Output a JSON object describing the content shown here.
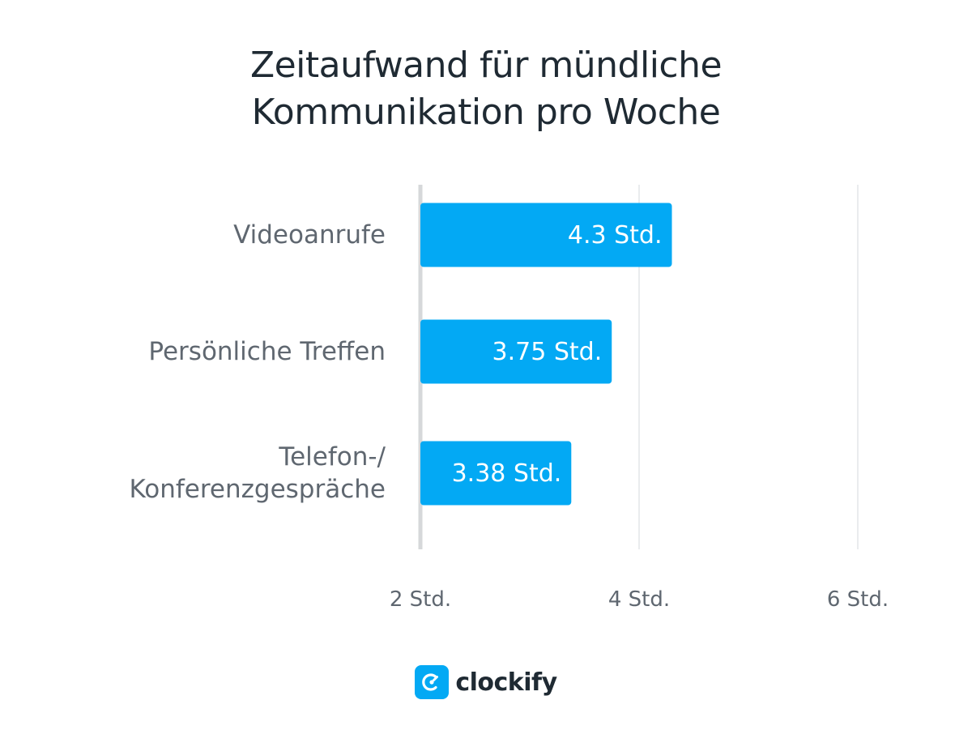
{
  "chart_data": {
    "type": "bar",
    "orientation": "horizontal",
    "title_lines": [
      "Zeitaufwand für mündliche",
      "Kommunikation pro Woche"
    ],
    "categories": [
      [
        "Videoanrufe"
      ],
      [
        "Persönliche Treffen"
      ],
      [
        "Telefon-/",
        "Konferenzgespräche"
      ]
    ],
    "values": [
      4.3,
      3.75,
      3.38
    ],
    "data_labels": [
      "4.3 Std.",
      "3.75 Std.",
      "3.38 Std."
    ],
    "xlim": [
      2,
      6.2
    ],
    "ticks": [
      2,
      4,
      6
    ],
    "tick_labels": [
      "2 Std.",
      "4 Std.",
      "6 Std."
    ],
    "grid": true,
    "bar_color": "#03a9f4"
  },
  "brand": {
    "name": "clockify",
    "icon": "clockify-logo-icon",
    "color": "#03a9f4"
  }
}
